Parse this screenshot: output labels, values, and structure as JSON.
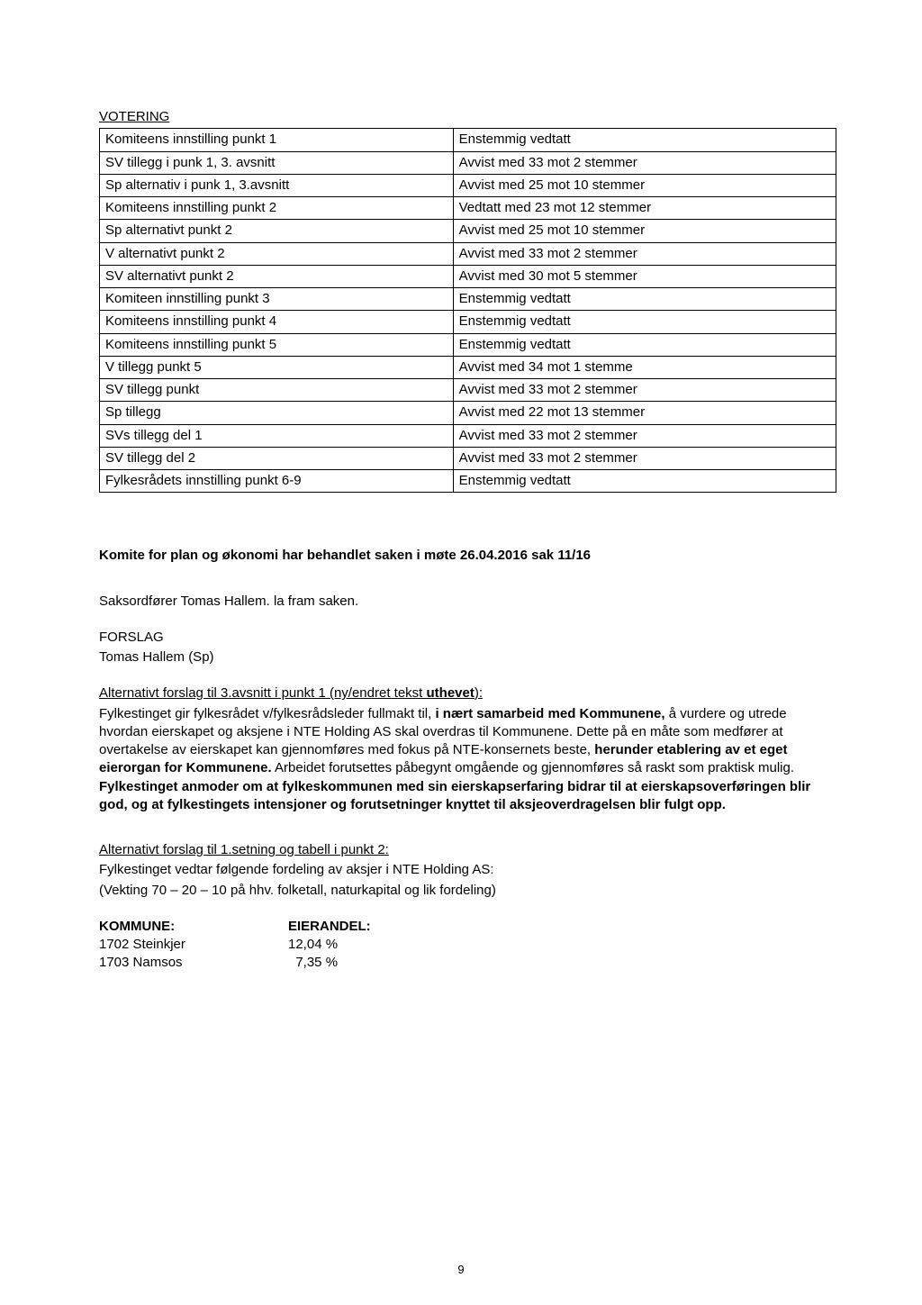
{
  "votering": {
    "heading": "VOTERING",
    "rows": [
      {
        "left": "Komiteens innstilling punkt 1",
        "right": "Enstemmig vedtatt"
      },
      {
        "left": "SV tillegg i punk 1, 3. avsnitt",
        "right": "Avvist med 33 mot 2 stemmer"
      },
      {
        "left": "Sp alternativ i punk 1,  3.avsnitt",
        "right": "Avvist  med 25 mot 10 stemmer"
      },
      {
        "left": "Komiteens innstilling punkt 2",
        "right": "Vedtatt med 23 mot 12 stemmer"
      },
      {
        "left": "Sp alternativt punkt 2",
        "right": "Avvist med 25 mot 10 stemmer"
      },
      {
        "left": "V alternativt punkt 2",
        "right": "Avvist med 33 mot 2 stemmer"
      },
      {
        "left": "SV alternativt punkt 2",
        "right": "Avvist med 30 mot 5 stemmer"
      },
      {
        "left": "Komiteen innstilling punkt 3",
        "right": "Enstemmig vedtatt"
      },
      {
        "left": "Komiteens innstilling punkt 4",
        "right": "Enstemmig vedtatt"
      },
      {
        "left": "Komiteens innstilling punkt 5",
        "right": "Enstemmig vedtatt"
      },
      {
        "left": "V tillegg punkt 5",
        "right": "Avvist med 34 mot 1 stemme"
      },
      {
        "left": "SV tillegg punkt",
        "right": "Avvist med 33 mot 2 stemmer"
      },
      {
        "left": "Sp tillegg",
        "right": "Avvist med 22 mot 13 stemmer"
      },
      {
        "left": "SVs tillegg del 1",
        "right": "Avvist med 33 mot 2 stemmer"
      },
      {
        "left": "SV tillegg del 2",
        "right": "Avvist med 33 mot 2 stemmer"
      },
      {
        "left": "Fylkesrådets innstilling punkt 6-9",
        "right": "Enstemmig vedtatt"
      }
    ]
  },
  "komite_heading": "Komite for plan og økonomi har behandlet saken i møte 26.04.2016 sak 11/16",
  "saksordforer": "Saksordfører Tomas Hallem. la fram saken.",
  "forslag_label": "FORSLAG",
  "forslag_author": "Tomas Hallem (Sp)",
  "alt1": {
    "title_pre": "Alternativt forslag til 3.avsnitt i punkt 1 (ny/endret tekst ",
    "title_bold": "uthevet",
    "title_post": "):",
    "p1a": "Fylkestinget gir fylkesrådet v/fylkesrådsleder fullmakt til, ",
    "p1b": "i nært samarbeid med Kommunene,",
    "p1c": " å vurdere og utrede hvordan eierskapet og aksjene i NTE Holding AS skal overdras til Kommunene. Dette på en måte som medfører at overtakelse av eierskapet kan gjennomføres med fokus på NTE-konsernets beste, ",
    "p1d": "herunder etablering av et eget eierorgan for Kommunene.",
    "p1e": " Arbeidet forutsettes påbegynt omgående og gjennomføres så raskt som praktisk mulig. ",
    "p1f": "Fylkestinget anmoder om at fylkeskommunen med sin eierskapserfaring bidrar til at eierskapsoverføringen blir god, og at fylkestingets intensjoner og forutsetninger knyttet til aksjeoverdragelsen blir fulgt opp."
  },
  "alt2": {
    "title": "Alternativt forslag til 1.setning og tabell i punkt 2:",
    "line1": "Fylkestinget vedtar følgende fordeling av aksjer i NTE Holding AS:",
    "line2": "(Vekting 70 – 20 – 10 på hhv. folketall, naturkapital og lik fordeling)"
  },
  "kommune": {
    "h1": "KOMMUNE:",
    "h2": "EIERANDEL:",
    "rows": [
      {
        "name": "1702 Steinkjer",
        "pct": "12,04 %"
      },
      {
        "name": "1703 Namsos",
        "pct": "  7,35 %"
      }
    ]
  },
  "pagenum": "9"
}
